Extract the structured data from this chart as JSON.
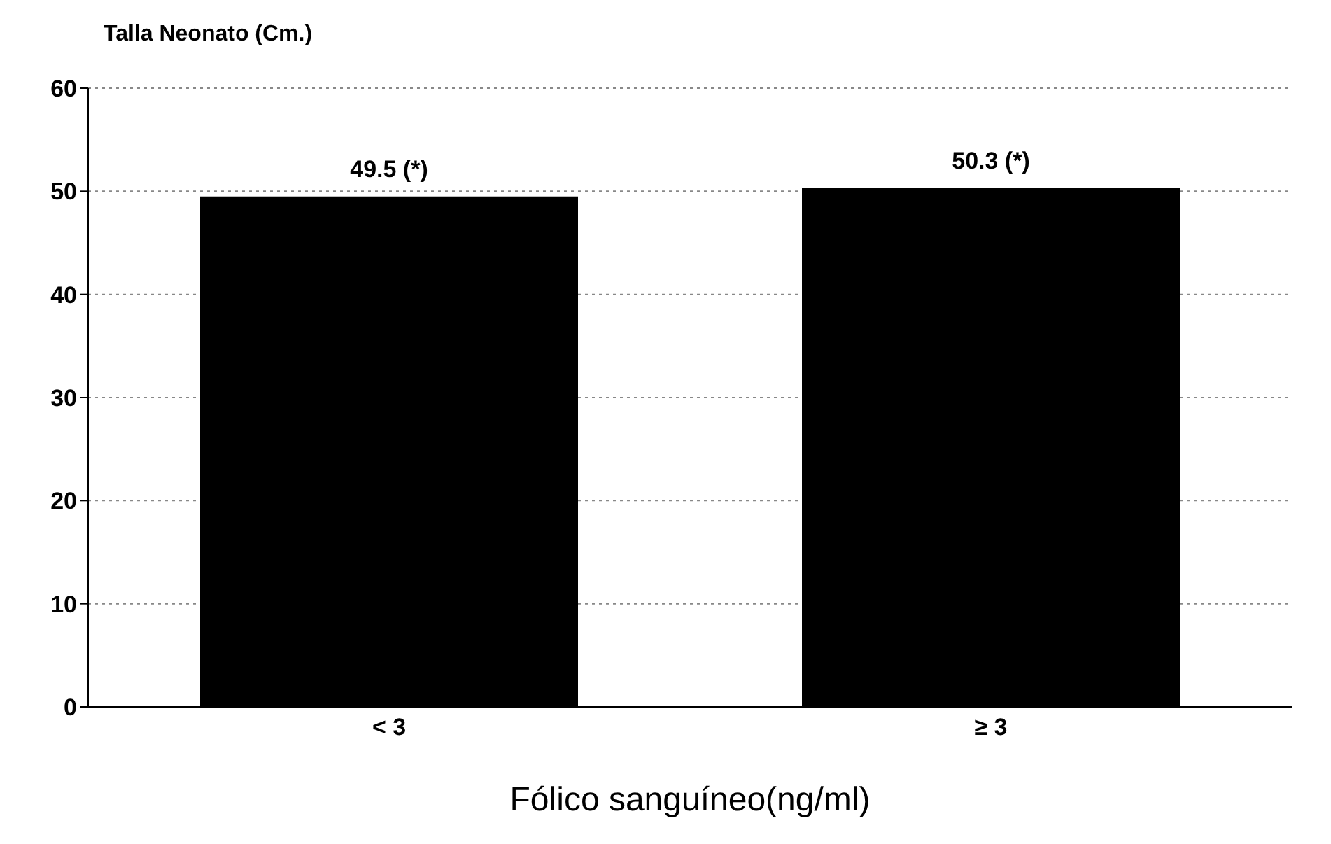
{
  "chart_data": {
    "type": "bar",
    "ylabel": "Talla Neonato (Cm.)",
    "xlabel": "Fólico sanguíneo(ng/ml)",
    "categories": [
      "< 3",
      "≥ 3"
    ],
    "values": [
      49.5,
      50.3
    ],
    "color": "#000000",
    "value_labels": [
      "49.5  (*)",
      "50.3 (*)"
    ],
    "ylim": [
      0,
      60
    ],
    "yticks": [
      0,
      10,
      20,
      30,
      40,
      50,
      60
    ],
    "grid": "y"
  }
}
